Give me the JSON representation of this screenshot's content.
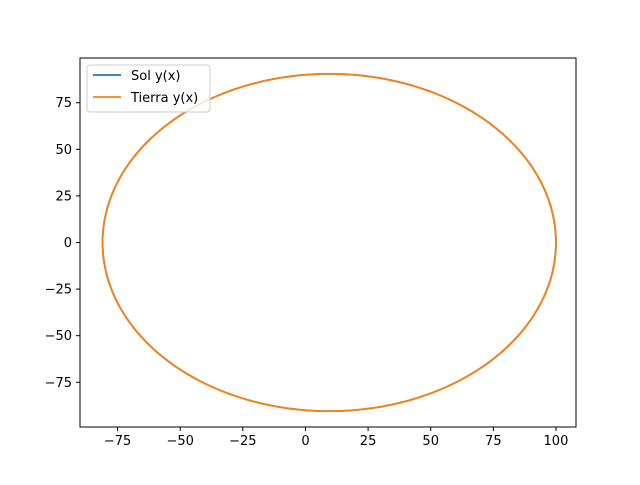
{
  "chart_data": {
    "type": "line",
    "title": "",
    "xlabel": "",
    "ylabel": "",
    "xlim": [
      -90,
      108
    ],
    "ylim": [
      -99,
      99
    ],
    "xticks": [
      -75,
      -50,
      -25,
      0,
      25,
      50,
      75,
      100
    ],
    "yticks": [
      -75,
      -50,
      -25,
      0,
      25,
      50,
      75
    ],
    "grid": false,
    "legend": "top-left",
    "series": [
      {
        "name": "Sol y(x)",
        "color": "#1f77b4",
        "description_shape": "ellipse",
        "center": [
          9.5,
          0
        ],
        "semi_axes": [
          90.5,
          90.5
        ],
        "x_range": [
          -81,
          100
        ],
        "y_range": [
          -90.5,
          90.5
        ]
      },
      {
        "name": "Tierra y(x)",
        "color": "#ff7f0e",
        "description_shape": "ellipse",
        "center": [
          9.5,
          0
        ],
        "semi_axes": [
          90.5,
          90.5
        ],
        "x_range": [
          -81,
          100
        ],
        "y_range": [
          -90.5,
          90.5
        ]
      }
    ]
  }
}
